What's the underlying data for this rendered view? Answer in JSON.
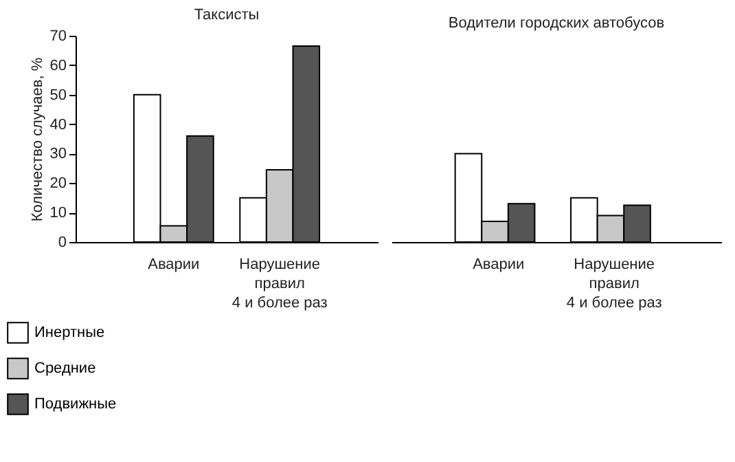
{
  "chart_data": [
    {
      "type": "bar",
      "title": "Таксисты",
      "ylabel": "Количество случаев, %",
      "categories": [
        "Аварии",
        "Нарушение\nправил\n4 и более раз"
      ],
      "ylim": [
        0,
        70
      ],
      "yticks": [
        0,
        10,
        20,
        30,
        40,
        50,
        60,
        70
      ],
      "grid": false,
      "legend": "bottom left",
      "series": [
        {
          "name": "Инертные",
          "color": "#ffffff",
          "values": [
            50,
            15
          ]
        },
        {
          "name": "Средние",
          "color": "#c8c8c8",
          "values": [
            5.5,
            24.5
          ]
        },
        {
          "name": "Подвижные",
          "color": "#555555",
          "values": [
            36,
            66.5
          ]
        }
      ]
    },
    {
      "type": "bar",
      "title": "Водители городских автобусов",
      "categories": [
        "Аварии",
        "Нарушение\nправил\n4 и более раз"
      ],
      "ylim": [
        0,
        70
      ],
      "yticks": [
        0,
        10,
        20,
        30,
        40,
        50,
        60,
        70
      ],
      "grid": false,
      "tick_labels": "x",
      "series": [
        {
          "color": "#ffffff",
          "values": [
            30,
            15
          ]
        },
        {
          "color": "#c8c8c8",
          "values": [
            7,
            9
          ]
        },
        {
          "color": "#555555",
          "values": [
            13,
            12.5
          ]
        }
      ]
    }
  ]
}
